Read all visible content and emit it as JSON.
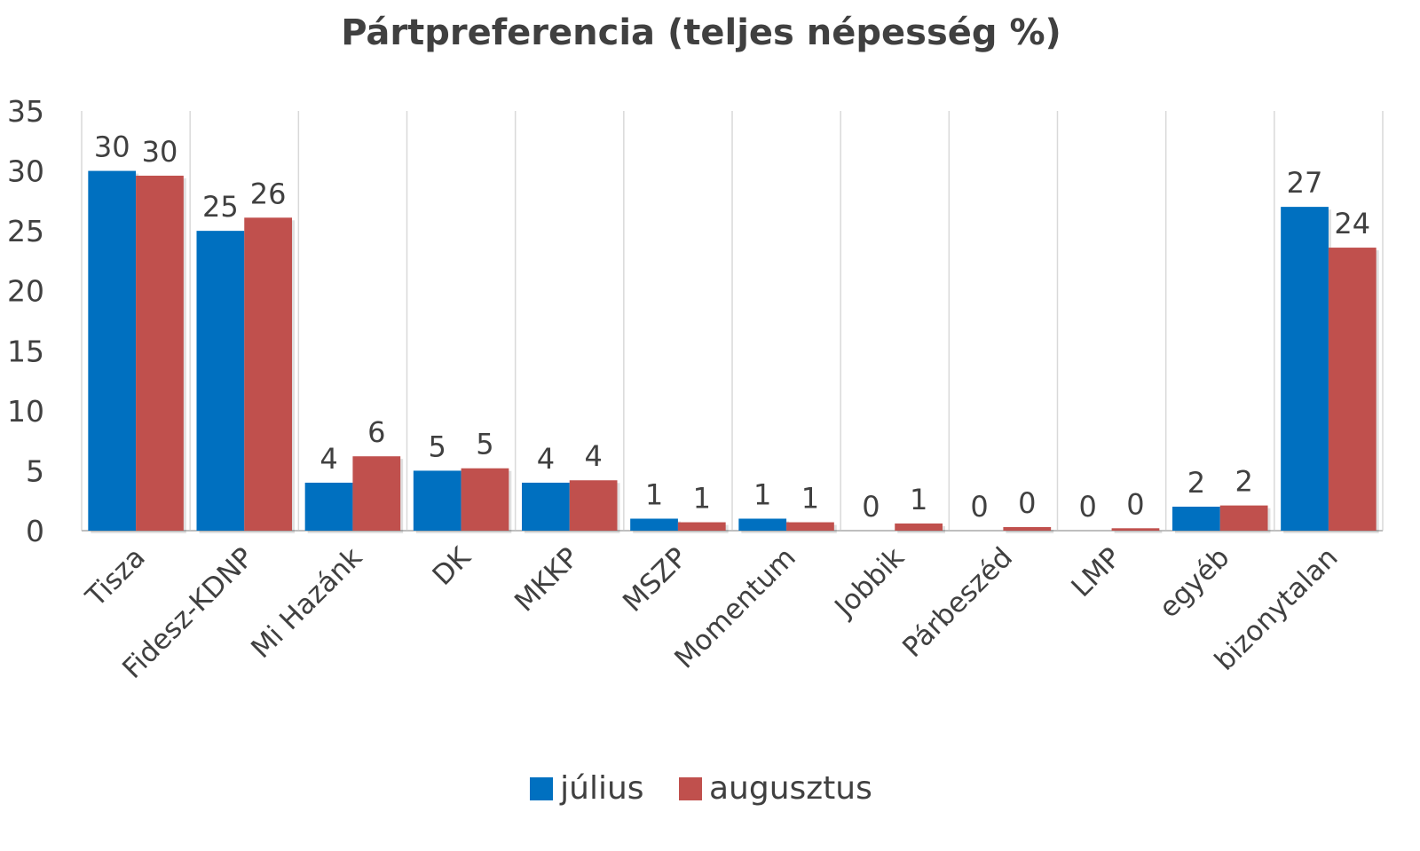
{
  "chart_data": {
    "type": "bar",
    "title": "Pártpreferencia (teljes népesség %)",
    "xlabel": "",
    "ylabel": "",
    "ylim": [
      0,
      35
    ],
    "yticks": [
      "0",
      "5",
      "10",
      "15",
      "20",
      "25",
      "30",
      "35"
    ],
    "grid": "vertical category separators",
    "legend_position": "bottom",
    "categories": [
      "Tisza",
      "Fidesz-KDNP",
      "Mi Hazánk",
      "DK",
      "MKKP",
      "MSZP",
      "Momentum",
      "Jobbik",
      "Párbeszéd",
      "LMP",
      "egyéb",
      "bizonytalan"
    ],
    "series": [
      {
        "name": "július",
        "color": "#0070C0",
        "values": [
          30,
          25,
          4,
          5,
          4,
          1,
          1,
          0,
          0,
          0,
          2,
          27
        ],
        "labels": [
          "30",
          "25",
          "4",
          "5",
          "4",
          "1",
          "1",
          "0",
          "0",
          "0",
          "2",
          "27"
        ]
      },
      {
        "name": "augusztus",
        "color": "#C0504D",
        "values": [
          29.6,
          26.1,
          6.2,
          5.2,
          4.2,
          0.7,
          0.7,
          0.6,
          0.3,
          0.2,
          2.1,
          23.6
        ],
        "labels": [
          "30",
          "26",
          "6",
          "5",
          "4",
          "1",
          "1",
          "1",
          "0",
          "0",
          "2",
          "24"
        ]
      }
    ]
  }
}
